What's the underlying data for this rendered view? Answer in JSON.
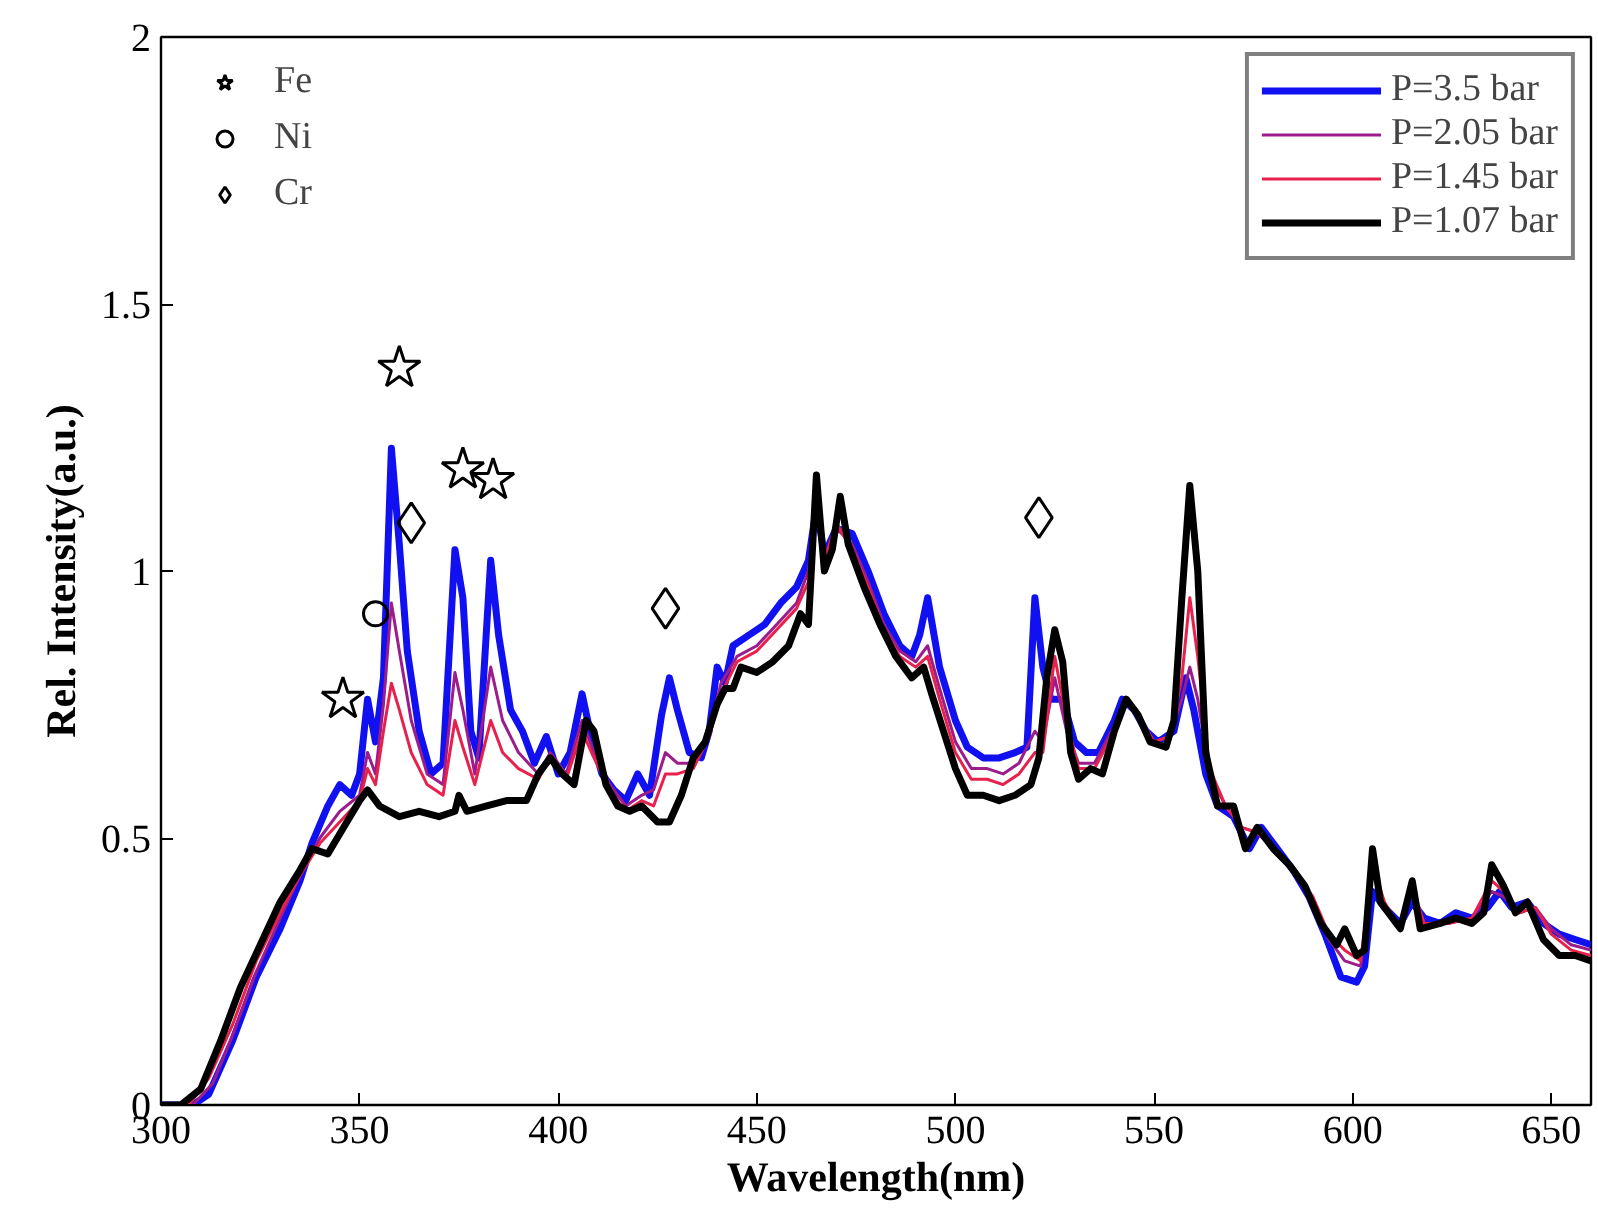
{
  "chart_data": {
    "type": "line",
    "xlabel": "Wavelength(nm)",
    "ylabel": "Rel. Intensity(a.u.)",
    "xlim": [
      300,
      660
    ],
    "xticks": [
      300,
      350,
      400,
      450,
      500,
      550,
      600,
      650
    ],
    "ylim": [
      0,
      2
    ],
    "yticks": [
      0,
      0.5,
      1,
      1.5,
      2
    ],
    "grid": false,
    "legend": "top right",
    "series": [
      {
        "name": "P=3.5 bar",
        "color": "#1010f0",
        "x": [
          300,
          308,
          312,
          318,
          324,
          330,
          335,
          338,
          342,
          345,
          348,
          350,
          352,
          354,
          356,
          358,
          360,
          362,
          365,
          368,
          371,
          374,
          376,
          378,
          380,
          383,
          385,
          388,
          391,
          394,
          397,
          400,
          403,
          406,
          408,
          411,
          414,
          417,
          420,
          423,
          426,
          428,
          430,
          433,
          436,
          438,
          440,
          442,
          444,
          448,
          452,
          456,
          460,
          463,
          465,
          467,
          470,
          474,
          478,
          482,
          486,
          489,
          491,
          493,
          496,
          500,
          503,
          507,
          511,
          515,
          518,
          520,
          522,
          524,
          527,
          530,
          533,
          536,
          540,
          542,
          545,
          548,
          551,
          555,
          558,
          560,
          563,
          566,
          570,
          574,
          577,
          581,
          585,
          589,
          593,
          597,
          601,
          603,
          605,
          608,
          612,
          615,
          618,
          622,
          626,
          630,
          634,
          637,
          640,
          644,
          648,
          652,
          656,
          660
        ],
        "values": [
          0,
          0,
          0.02,
          0.12,
          0.24,
          0.33,
          0.42,
          0.49,
          0.56,
          0.6,
          0.58,
          0.62,
          0.76,
          0.68,
          0.8,
          1.23,
          1.05,
          0.85,
          0.7,
          0.62,
          0.64,
          1.04,
          0.95,
          0.7,
          0.65,
          1.02,
          0.88,
          0.74,
          0.7,
          0.64,
          0.69,
          0.62,
          0.66,
          0.77,
          0.7,
          0.62,
          0.59,
          0.57,
          0.62,
          0.58,
          0.73,
          0.8,
          0.74,
          0.66,
          0.65,
          0.7,
          0.82,
          0.79,
          0.86,
          0.88,
          0.9,
          0.94,
          0.97,
          1.02,
          1.12,
          1.03,
          1.08,
          1.07,
          1.0,
          0.92,
          0.86,
          0.84,
          0.88,
          0.95,
          0.82,
          0.72,
          0.67,
          0.65,
          0.65,
          0.66,
          0.67,
          0.95,
          0.82,
          0.76,
          0.76,
          0.68,
          0.66,
          0.66,
          0.72,
          0.76,
          0.74,
          0.7,
          0.68,
          0.7,
          0.8,
          0.74,
          0.62,
          0.56,
          0.54,
          0.48,
          0.52,
          0.48,
          0.44,
          0.39,
          0.32,
          0.24,
          0.23,
          0.26,
          0.4,
          0.37,
          0.34,
          0.38,
          0.35,
          0.34,
          0.36,
          0.35,
          0.37,
          0.4,
          0.37,
          0.38,
          0.34,
          0.32,
          0.31,
          0.3
        ]
      },
      {
        "name": "P=2.05 bar",
        "color": "#9c1c8c",
        "x": [
          300,
          308,
          313,
          318,
          324,
          330,
          335,
          340,
          345,
          350,
          352,
          354,
          356,
          358,
          360,
          363,
          367,
          371,
          374,
          376,
          379,
          383,
          386,
          390,
          395,
          398,
          402,
          406,
          409,
          413,
          417,
          421,
          424,
          427,
          430,
          434,
          438,
          441,
          445,
          450,
          455,
          460,
          463,
          465,
          467,
          470,
          474,
          478,
          482,
          486,
          490,
          493,
          496,
          500,
          504,
          508,
          512,
          516,
          520,
          522,
          525,
          528,
          531,
          535,
          540,
          543,
          546,
          550,
          554,
          557,
          559,
          561,
          564,
          568,
          572,
          576,
          580,
          585,
          590,
          594,
          598,
          602,
          605,
          608,
          612,
          615,
          618,
          624,
          630,
          635,
          638,
          642,
          646,
          650,
          655,
          660
        ],
        "values": [
          0,
          0,
          0.04,
          0.13,
          0.25,
          0.35,
          0.43,
          0.5,
          0.55,
          0.58,
          0.66,
          0.62,
          0.75,
          0.94,
          0.85,
          0.72,
          0.62,
          0.6,
          0.81,
          0.74,
          0.62,
          0.82,
          0.72,
          0.66,
          0.62,
          0.66,
          0.62,
          0.72,
          0.66,
          0.6,
          0.56,
          0.58,
          0.59,
          0.66,
          0.64,
          0.64,
          0.7,
          0.79,
          0.84,
          0.86,
          0.9,
          0.94,
          1.0,
          1.12,
          1.02,
          1.08,
          1.05,
          0.98,
          0.9,
          0.85,
          0.83,
          0.86,
          0.78,
          0.68,
          0.63,
          0.63,
          0.62,
          0.64,
          0.7,
          0.68,
          0.8,
          0.7,
          0.64,
          0.64,
          0.71,
          0.76,
          0.73,
          0.68,
          0.69,
          0.76,
          0.82,
          0.76,
          0.62,
          0.56,
          0.52,
          0.51,
          0.48,
          0.44,
          0.38,
          0.31,
          0.27,
          0.26,
          0.44,
          0.37,
          0.33,
          0.4,
          0.34,
          0.34,
          0.35,
          0.4,
          0.39,
          0.36,
          0.37,
          0.33,
          0.3,
          0.29
        ]
      },
      {
        "name": "P=1.45 bar",
        "color": "#e8204c",
        "x": [
          300,
          307,
          312,
          318,
          324,
          330,
          335,
          340,
          345,
          350,
          352,
          354,
          356,
          358,
          360,
          363,
          367,
          371,
          374,
          376,
          379,
          383,
          386,
          390,
          395,
          398,
          402,
          406,
          409,
          413,
          417,
          421,
          424,
          427,
          430,
          434,
          438,
          441,
          445,
          450,
          455,
          460,
          463,
          465,
          467,
          470,
          474,
          478,
          482,
          486,
          490,
          493,
          496,
          500,
          504,
          508,
          512,
          516,
          520,
          522,
          525,
          528,
          531,
          535,
          540,
          543,
          546,
          550,
          554,
          557,
          559,
          561,
          564,
          568,
          572,
          576,
          580,
          585,
          590,
          594,
          598,
          602,
          605,
          608,
          612,
          615,
          618,
          624,
          630,
          635,
          638,
          642,
          646,
          650,
          655,
          660
        ],
        "values": [
          0,
          0,
          0.05,
          0.15,
          0.27,
          0.36,
          0.43,
          0.49,
          0.53,
          0.57,
          0.63,
          0.6,
          0.7,
          0.79,
          0.74,
          0.66,
          0.6,
          0.58,
          0.72,
          0.67,
          0.6,
          0.72,
          0.66,
          0.63,
          0.61,
          0.65,
          0.61,
          0.7,
          0.65,
          0.59,
          0.55,
          0.57,
          0.56,
          0.62,
          0.62,
          0.63,
          0.69,
          0.77,
          0.83,
          0.85,
          0.89,
          0.93,
          0.98,
          1.14,
          1.02,
          1.09,
          1.04,
          0.97,
          0.89,
          0.84,
          0.82,
          0.84,
          0.76,
          0.66,
          0.61,
          0.61,
          0.6,
          0.62,
          0.66,
          0.66,
          0.84,
          0.72,
          0.63,
          0.63,
          0.7,
          null,
          0.73,
          0.68,
          0.69,
          0.8,
          0.95,
          0.84,
          0.63,
          0.56,
          0.52,
          0.51,
          0.48,
          0.44,
          0.39,
          0.32,
          0.29,
          0.27,
          0.45,
          0.38,
          0.33,
          0.41,
          0.34,
          0.34,
          0.35,
          0.42,
          0.4,
          0.36,
          0.37,
          0.32,
          0.29,
          0.28
        ]
      },
      {
        "name": "P=1.07 bar",
        "color": "#000000",
        "x": [
          300,
          305,
          310,
          315,
          320,
          325,
          330,
          335,
          338,
          342,
          346,
          350,
          352,
          355,
          360,
          365,
          370,
          374,
          375,
          377,
          382,
          387,
          392,
          395,
          398,
          401,
          404,
          407,
          409,
          412,
          415,
          418,
          421,
          425,
          428,
          431,
          434,
          437,
          440,
          442,
          444,
          446,
          450,
          454,
          458,
          461,
          463,
          465,
          467,
          469,
          471,
          473,
          477,
          481,
          485,
          489,
          492,
          494,
          497,
          500,
          503,
          507,
          511,
          515,
          519,
          521,
          523,
          525,
          527,
          529,
          531,
          534,
          537,
          540,
          543,
          546,
          549,
          553,
          555,
          557,
          559,
          561,
          563,
          566,
          570,
          573,
          576,
          580,
          584,
          588,
          592,
          596,
          598,
          601,
          603,
          605,
          607,
          612,
          615,
          617,
          622,
          626,
          630,
          633,
          635,
          638,
          641,
          644,
          648,
          652,
          656,
          660
        ],
        "values": [
          0,
          0,
          0.03,
          0.12,
          0.22,
          0.3,
          0.38,
          0.44,
          0.48,
          0.47,
          0.52,
          0.57,
          0.59,
          0.56,
          0.54,
          0.55,
          0.54,
          0.55,
          0.58,
          0.55,
          0.56,
          0.57,
          0.57,
          0.62,
          0.65,
          0.62,
          0.6,
          0.72,
          0.7,
          0.6,
          0.56,
          0.55,
          0.56,
          0.53,
          0.53,
          0.58,
          0.65,
          0.68,
          0.75,
          0.78,
          0.78,
          0.82,
          0.81,
          0.83,
          0.86,
          0.92,
          0.9,
          1.18,
          1.0,
          1.04,
          1.14,
          1.05,
          0.97,
          0.9,
          0.84,
          0.8,
          0.82,
          0.77,
          0.7,
          0.63,
          0.58,
          0.58,
          0.57,
          0.58,
          0.6,
          0.65,
          0.8,
          0.89,
          0.83,
          0.66,
          0.61,
          0.63,
          0.62,
          0.7,
          0.76,
          0.73,
          0.68,
          0.67,
          0.72,
          0.95,
          1.16,
          1.0,
          0.66,
          0.56,
          0.56,
          0.48,
          0.52,
          0.48,
          0.45,
          0.41,
          0.34,
          0.3,
          0.33,
          0.28,
          0.29,
          0.48,
          0.38,
          0.33,
          0.42,
          0.33,
          0.34,
          0.35,
          0.34,
          0.36,
          0.45,
          0.41,
          0.36,
          0.38,
          0.31,
          0.28,
          0.28,
          0.27
        ]
      },
      {
        "name": "Fe",
        "type": "scatter",
        "marker": "star",
        "color": "#000000",
        "x": [
          345.8,
          360,
          376,
          383.6
        ],
        "values": [
          0.76,
          1.38,
          1.19,
          1.17
        ]
      },
      {
        "name": "Ni",
        "type": "scatter",
        "marker": "circle",
        "color": "#000000",
        "x": [
          354
        ],
        "values": [
          0.92
        ]
      },
      {
        "name": "Cr",
        "type": "scatter",
        "marker": "diamond",
        "color": "#000000",
        "x": [
          363,
          427,
          521
        ],
        "values": [
          1.09,
          0.93,
          1.1
        ]
      }
    ]
  }
}
